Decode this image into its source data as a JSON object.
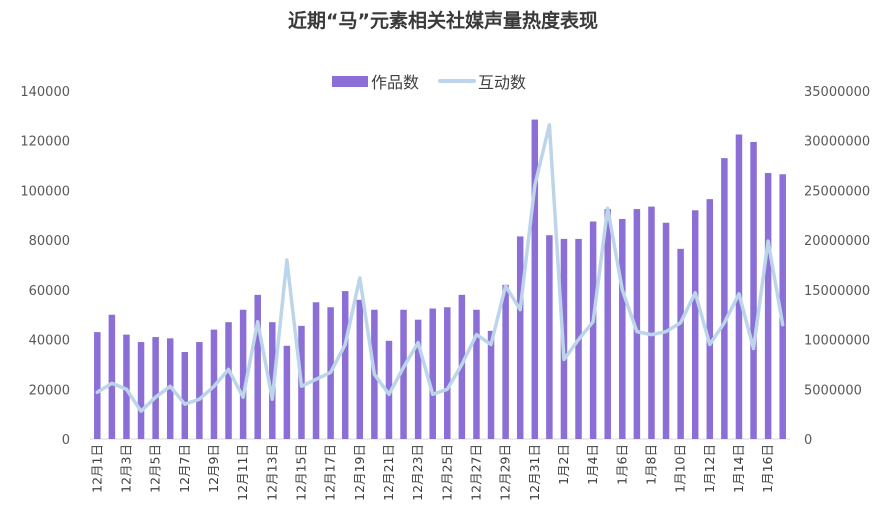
{
  "chart_data": {
    "type": "bar",
    "title": "近期“马”元素相关社媒声量热度表现",
    "legend": {
      "position": "top-center"
    },
    "colors": {
      "bar": "#8B6FD6",
      "line": "#BDD5EA",
      "axis": "#d9d9d9",
      "text": "#595959"
    },
    "categories": [
      "12月1日",
      "12月2日",
      "12月3日",
      "12月4日",
      "12月5日",
      "12月6日",
      "12月7日",
      "12月8日",
      "12月9日",
      "12月10日",
      "12月11日",
      "12月12日",
      "12月13日",
      "12月14日",
      "12月15日",
      "12月16日",
      "12月17日",
      "12月18日",
      "12月19日",
      "12月20日",
      "12月21日",
      "12月22日",
      "12月23日",
      "12月24日",
      "12月25日",
      "12月26日",
      "12月27日",
      "12月28日",
      "12月29日",
      "12月30日",
      "12月31日",
      "1月1日",
      "1月2日",
      "1月3日",
      "1月4日",
      "1月5日",
      "1月6日",
      "1月7日",
      "1月8日",
      "1月9日",
      "1月10日",
      "1月11日",
      "1月12日",
      "1月13日",
      "1月14日",
      "1月15日",
      "1月16日",
      "1月17日"
    ],
    "x_tick_labels": [
      "12月1日",
      "12月3日",
      "12月5日",
      "12月7日",
      "12月9日",
      "12月11日",
      "12月13日",
      "12月15日",
      "12月17日",
      "12月19日",
      "12月21日",
      "12月23日",
      "12月25日",
      "12月27日",
      "12月29日",
      "12月31日",
      "1月2日",
      "1月4日",
      "1月6日",
      "1月8日",
      "1月10日",
      "1月12日",
      "1月14日",
      "1月16日"
    ],
    "y_left": {
      "min": 0,
      "max": 140000,
      "ticks": [
        "0",
        "20000",
        "40000",
        "60000",
        "80000",
        "100000",
        "120000",
        "140000"
      ]
    },
    "y_right": {
      "min": 0,
      "max": 35000000,
      "ticks": [
        "0",
        "5000000",
        "10000000",
        "15000000",
        "20000000",
        "25000000",
        "30000000",
        "35000000"
      ]
    },
    "series": [
      {
        "name": "作品数",
        "type": "bar",
        "axis": "left",
        "values": [
          43000,
          50000,
          42000,
          39000,
          41000,
          40500,
          35000,
          39000,
          44000,
          47000,
          52000,
          58000,
          47000,
          37500,
          45500,
          55000,
          53000,
          59500,
          56000,
          52000,
          39500,
          52000,
          48000,
          52500,
          53000,
          58000,
          52000,
          43500,
          62000,
          81500,
          128500,
          82000,
          80500,
          80500,
          87500,
          92500,
          88500,
          92500,
          93500,
          87000,
          76500,
          92000,
          96500,
          113000,
          122500,
          119500,
          107000,
          106500
        ]
      },
      {
        "name": "互动数",
        "type": "line",
        "axis": "right",
        "values": [
          4700000,
          5600000,
          5000000,
          2800000,
          4200000,
          5300000,
          3500000,
          4000000,
          5300000,
          7000000,
          4200000,
          11800000,
          4000000,
          18000000,
          5300000,
          6000000,
          6700000,
          9500000,
          16200000,
          6500000,
          4500000,
          7200000,
          9700000,
          4500000,
          5000000,
          7500000,
          10500000,
          9500000,
          15400000,
          13000000,
          25500000,
          31600000,
          8000000,
          10000000,
          11800000,
          23200000,
          15000000,
          10800000,
          10500000,
          10800000,
          11700000,
          14700000,
          9500000,
          11700000,
          14600000,
          9100000,
          19900000,
          11500000
        ]
      }
    ]
  }
}
